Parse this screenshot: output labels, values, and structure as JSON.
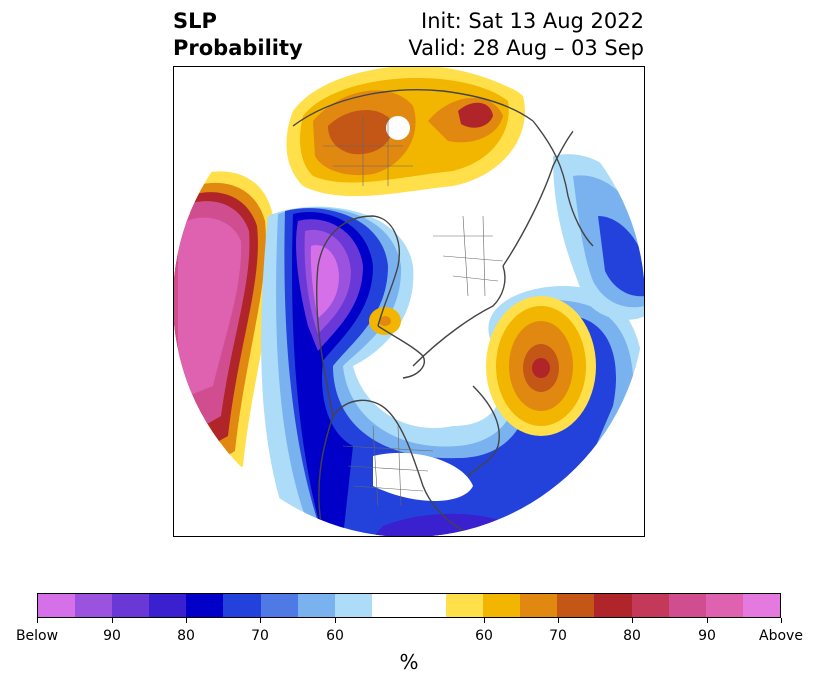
{
  "title": {
    "line1": "SLP",
    "line2": "Probability",
    "init": "Init: Sat 13 Aug 2022",
    "valid": "Valid: 28 Aug – 03 Sep"
  },
  "colorbar": {
    "unit": "%",
    "colors": [
      "#d670e8",
      "#9a52df",
      "#6b38d8",
      "#3a20cf",
      "#0000c8",
      "#2342dc",
      "#4f7ae6",
      "#7ab2f0",
      "#addcf8",
      "#ffffff",
      "#ffffff",
      "#ffe04a",
      "#f2b500",
      "#e08810",
      "#c45716",
      "#b0252a",
      "#c4385a",
      "#d04e90",
      "#de62b0",
      "#e47ae0"
    ],
    "ticks": [
      "Below",
      "90",
      "80",
      "70",
      "60",
      "60",
      "70",
      "80",
      "90",
      "Above"
    ]
  },
  "map": {
    "projection": "north polar stereographic",
    "field": "sea level pressure tercile probability",
    "legend_colors": {
      "below_strong": "#9a52df",
      "below": "#0000c8",
      "near": "#ffffff",
      "above": "#f2b500",
      "above_strong": "#b0252a"
    }
  }
}
